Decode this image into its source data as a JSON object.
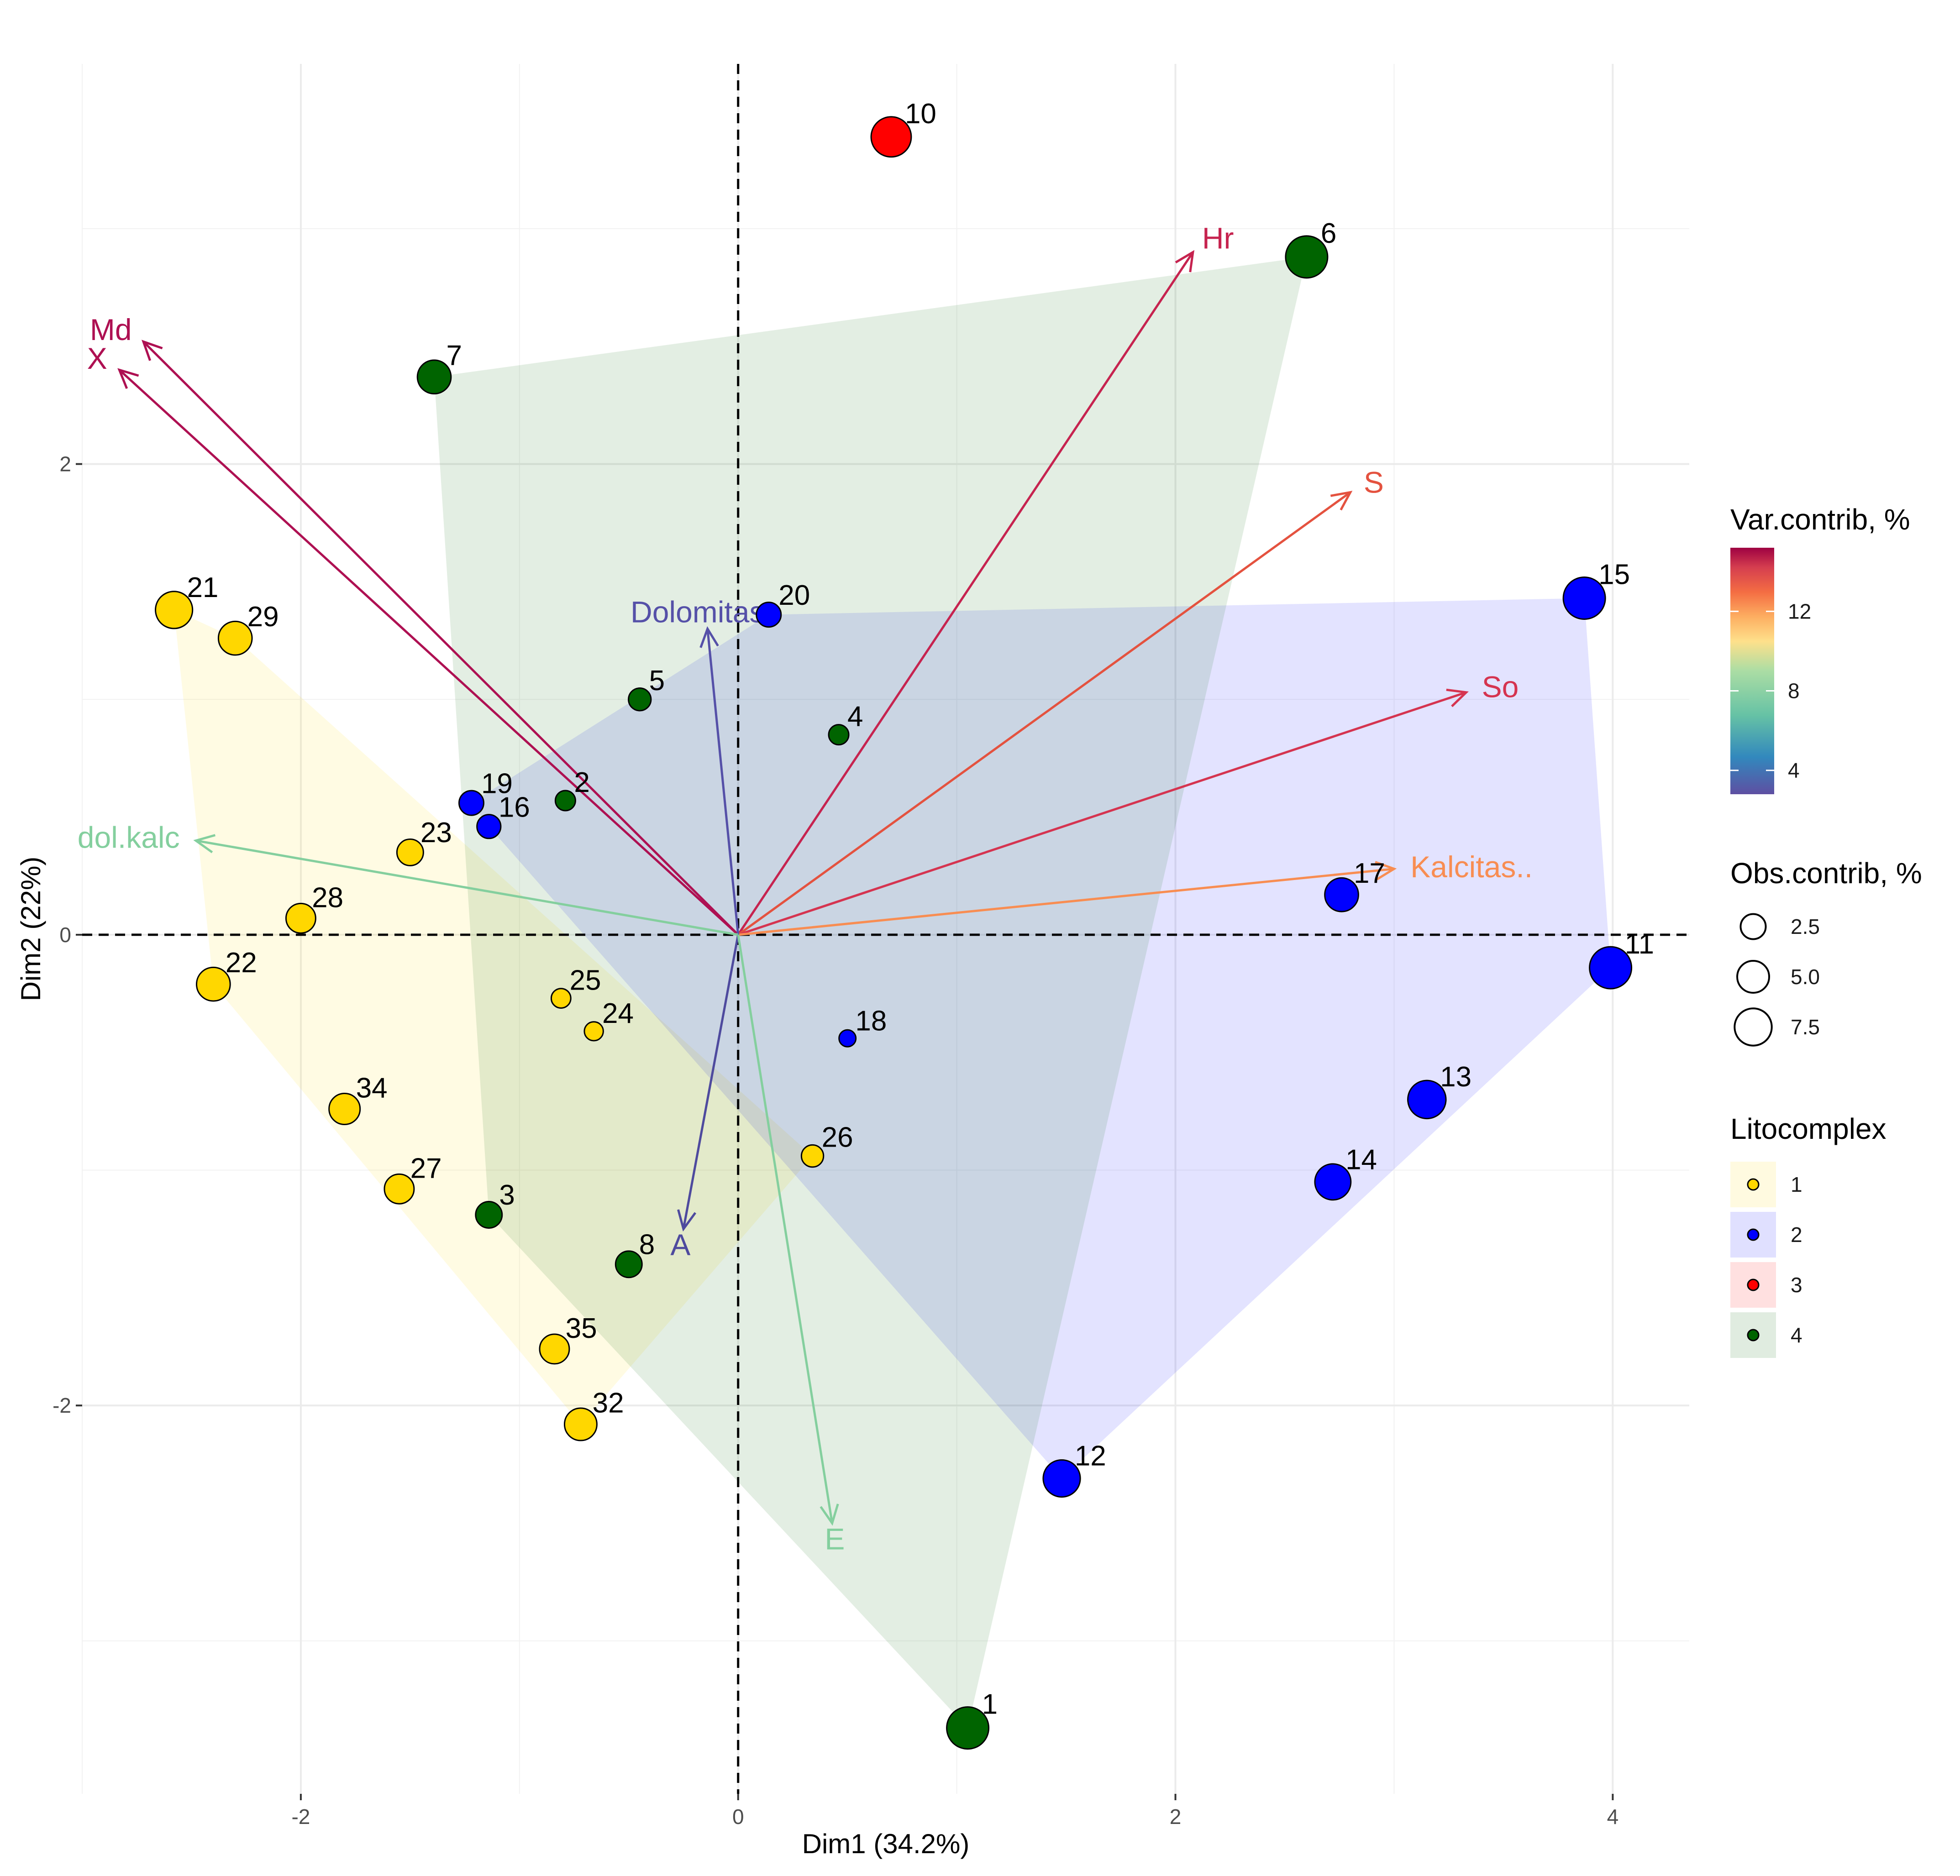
{
  "chart_data": {
    "type": "scatter",
    "subtype": "pca-biplot",
    "xlabel": "Dim1 (34.2%)",
    "ylabel": "Dim2 (22%)",
    "xlim": [
      -3.0,
      4.35
    ],
    "ylim": [
      -3.65,
      3.7
    ],
    "x_ticks": [
      -2,
      0,
      2,
      4
    ],
    "y_ticks": [
      -2,
      0,
      2
    ],
    "grid": true,
    "reference_lines": {
      "x": 0,
      "y": 0,
      "style": "dashed"
    },
    "groups": [
      {
        "name": "1",
        "fill": "#FFD700",
        "hull": "#FFFACD"
      },
      {
        "name": "2",
        "fill": "#0000FF",
        "hull": "#D6D6FF"
      },
      {
        "name": "3",
        "fill": "#FF0000",
        "hull": "#FFE0E0"
      },
      {
        "name": "4",
        "fill": "#006400",
        "hull": "#D5E6D5"
      }
    ],
    "points": [
      {
        "id": "1",
        "x": 1.05,
        "y": -3.37,
        "group": "4",
        "contrib": 9.0
      },
      {
        "id": "2",
        "x": -0.79,
        "y": 0.57,
        "group": "4",
        "contrib": 1.0
      },
      {
        "id": "3",
        "x": -1.14,
        "y": -1.19,
        "group": "4",
        "contrib": 2.5
      },
      {
        "id": "4",
        "x": 0.46,
        "y": 0.85,
        "group": "4",
        "contrib": 1.0
      },
      {
        "id": "5",
        "x": -0.45,
        "y": 1.0,
        "group": "4",
        "contrib": 1.5
      },
      {
        "id": "6",
        "x": 2.6,
        "y": 2.88,
        "group": "4",
        "contrib": 9.0
      },
      {
        "id": "7",
        "x": -1.39,
        "y": 2.37,
        "group": "4",
        "contrib": 5.0
      },
      {
        "id": "8",
        "x": -0.5,
        "y": -1.4,
        "group": "4",
        "contrib": 2.5
      },
      {
        "id": "10",
        "x": 0.7,
        "y": 3.39,
        "group": "3",
        "contrib": 8.0
      },
      {
        "id": "11",
        "x": 3.99,
        "y": -0.14,
        "group": "2",
        "contrib": 9.0
      },
      {
        "id": "12",
        "x": 1.48,
        "y": -2.31,
        "group": "2",
        "contrib": 6.5
      },
      {
        "id": "13",
        "x": 3.15,
        "y": -0.7,
        "group": "2",
        "contrib": 7.0
      },
      {
        "id": "14",
        "x": 2.72,
        "y": -1.05,
        "group": "2",
        "contrib": 6.0
      },
      {
        "id": "15",
        "x": 3.87,
        "y": 1.43,
        "group": "2",
        "contrib": 9.0
      },
      {
        "id": "16",
        "x": -1.14,
        "y": 0.46,
        "group": "2",
        "contrib": 1.8
      },
      {
        "id": "17",
        "x": 2.76,
        "y": 0.17,
        "group": "2",
        "contrib": 5.0
      },
      {
        "id": "18",
        "x": 0.5,
        "y": -0.44,
        "group": "2",
        "contrib": 0.5
      },
      {
        "id": "19",
        "x": -1.22,
        "y": 0.56,
        "group": "2",
        "contrib": 2.0
      },
      {
        "id": "20",
        "x": 0.14,
        "y": 1.36,
        "group": "2",
        "contrib": 2.0
      },
      {
        "id": "21",
        "x": -2.58,
        "y": 1.38,
        "group": "1",
        "contrib": 6.5
      },
      {
        "id": "22",
        "x": -2.4,
        "y": -0.21,
        "group": "1",
        "contrib": 5.0
      },
      {
        "id": "23",
        "x": -1.5,
        "y": 0.35,
        "group": "1",
        "contrib": 2.5
      },
      {
        "id": "24",
        "x": -0.66,
        "y": -0.41,
        "group": "1",
        "contrib": 0.8
      },
      {
        "id": "25",
        "x": -0.81,
        "y": -0.27,
        "group": "1",
        "contrib": 0.9
      },
      {
        "id": "26",
        "x": 0.34,
        "y": -0.94,
        "group": "1",
        "contrib": 1.4
      },
      {
        "id": "27",
        "x": -1.55,
        "y": -1.08,
        "group": "1",
        "contrib": 3.5
      },
      {
        "id": "28",
        "x": -2.0,
        "y": 0.07,
        "group": "1",
        "contrib": 3.5
      },
      {
        "id": "29",
        "x": -2.3,
        "y": 1.26,
        "group": "1",
        "contrib": 5.0
      },
      {
        "id": "32",
        "x": -0.72,
        "y": -2.08,
        "group": "1",
        "contrib": 4.5
      },
      {
        "id": "34",
        "x": -1.8,
        "y": -0.74,
        "group": "1",
        "contrib": 4.0
      },
      {
        "id": "35",
        "x": -0.84,
        "y": -1.76,
        "group": "1",
        "contrib": 3.5
      }
    ],
    "variables": [
      {
        "name": "Md",
        "x": -2.72,
        "y": 2.52,
        "contrib": 14.5,
        "color": "#AE1052"
      },
      {
        "name": "X",
        "x": -2.83,
        "y": 2.4,
        "contrib": 14.5,
        "color": "#AE1052"
      },
      {
        "name": "Hr",
        "x": 2.08,
        "y": 2.9,
        "contrib": 13.5,
        "color": "#C6234F"
      },
      {
        "name": "S",
        "x": 2.8,
        "y": 1.88,
        "contrib": 12.2,
        "color": "#E4523F"
      },
      {
        "name": "So",
        "x": 3.33,
        "y": 1.03,
        "contrib": 13.0,
        "color": "#D53450"
      },
      {
        "name": "Kalcitas..",
        "x": 3.0,
        "y": 0.28,
        "contrib": 10.8,
        "color": "#F88D52"
      },
      {
        "name": "Dolomitas..",
        "x": -0.14,
        "y": 1.3,
        "contrib": 3.3,
        "color": "#5550A8"
      },
      {
        "name": "dol.kalc",
        "x": -2.48,
        "y": 0.4,
        "contrib": 6.5,
        "color": "#84CF9E"
      },
      {
        "name": "A",
        "x": -0.25,
        "y": -1.25,
        "contrib": 3.0,
        "color": "#4E4A9E"
      },
      {
        "name": "E",
        "x": 0.43,
        "y": -2.5,
        "contrib": 6.5,
        "color": "#84CF9E"
      }
    ],
    "legend": {
      "var_contrib": {
        "title": "Var.contrib, %",
        "ticks": [
          "4",
          "8",
          "12"
        ],
        "range": [
          2.8,
          15.2
        ]
      },
      "obs_contrib": {
        "title": "Obs.contrib, %",
        "items": [
          "2.5",
          "5.0",
          "7.5"
        ]
      },
      "groups": {
        "title": "Litocomplex",
        "items": [
          "1",
          "2",
          "3",
          "4"
        ]
      }
    }
  }
}
